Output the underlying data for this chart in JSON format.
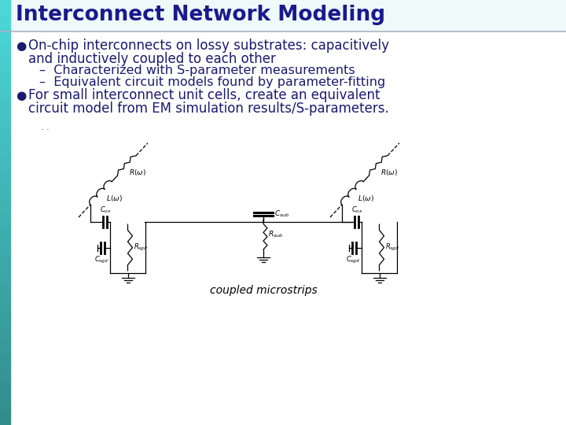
{
  "title": "Interconnect Network Modeling",
  "title_color": "#1a1a8c",
  "title_fontsize": 19,
  "bg_color": "#ffffff",
  "teal_color": "#55cccc",
  "header_line_color": "#9090b0",
  "bullet1_line1": "On-chip interconnects on lossy substrates: capacitively",
  "bullet1_line2": "and inductively coupled to each other",
  "sub1": "–  Characterized with S-parameter measurements",
  "sub2": "–  Equivalent circuit models found by parameter-fitting",
  "bullet2_line1": "For small interconnect unit cells, create an equivalent",
  "bullet2_line2": "circuit model from EM simulation results/S-parameters.",
  "text_color": "#1a1a6e",
  "text_fontsize": 12.0,
  "sub_fontsize": 11.5,
  "circuit_label": "coupled microstrips",
  "circuit_label_fontsize": 10,
  "dots_text": "· ·"
}
